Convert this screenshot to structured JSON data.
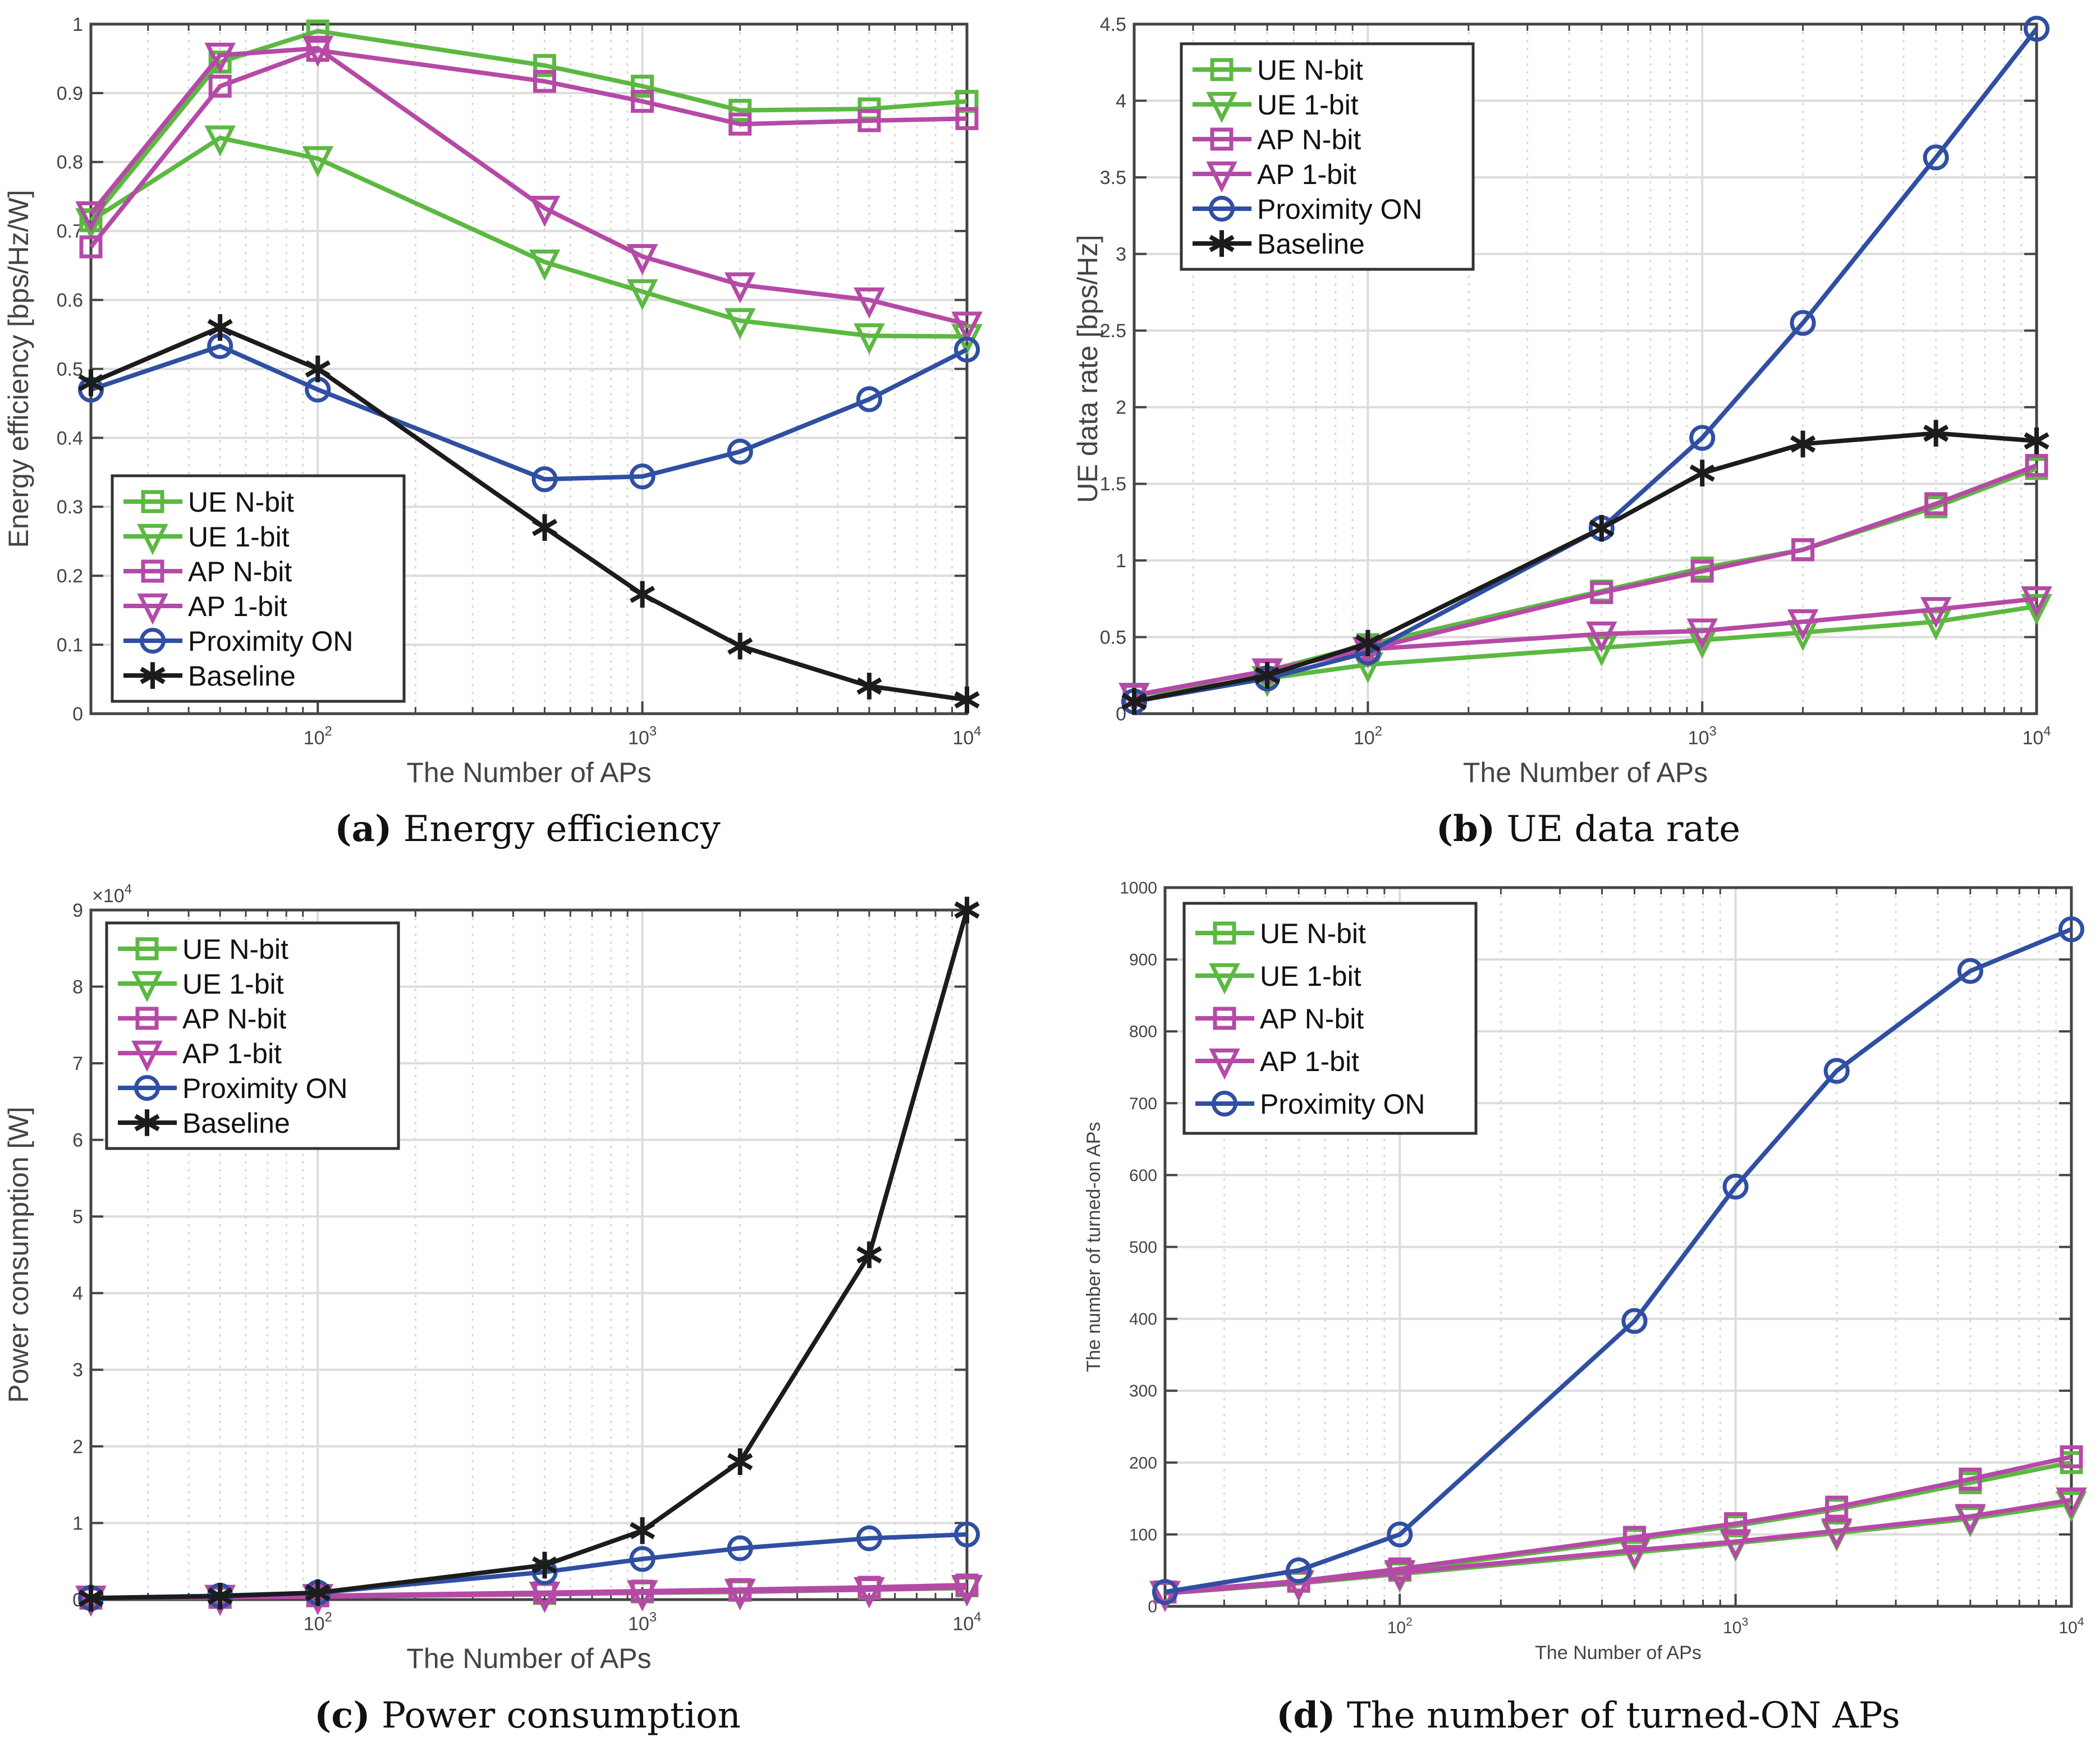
{
  "colors": {
    "green": "#5cb842",
    "magenta": "#b54aa6",
    "blue": "#2f4fa2",
    "black": "#1c1c1c"
  },
  "chart_data": [
    {
      "type": "line",
      "caption_letter": "(a)",
      "caption": "Energy efficiency",
      "xlabel": "The Number of APs",
      "ylabel": "Energy efficiency [bps/Hz/W]",
      "xscale": "log",
      "xlim": [
        20,
        10000
      ],
      "ylim": [
        0,
        1
      ],
      "yticks": [
        "0",
        "0.1",
        "0.2",
        "0.3",
        "0.4",
        "0.5",
        "0.6",
        "0.7",
        "0.8",
        "0.9",
        "1"
      ],
      "xticks": [
        {
          "base": "10",
          "exp": "2"
        },
        {
          "base": "10",
          "exp": "3"
        },
        {
          "base": "10",
          "exp": "4"
        }
      ],
      "grid": true,
      "legend": "bottom-left",
      "multiplier": "",
      "x": [
        20,
        50,
        100,
        500,
        1000,
        2000,
        5000,
        10000
      ],
      "series": [
        {
          "name": "UE N-bit",
          "color": "green",
          "marker": "square",
          "values": [
            0.715,
            0.945,
            0.99,
            0.94,
            0.91,
            0.875,
            0.877,
            0.888
          ]
        },
        {
          "name": "UE 1-bit",
          "color": "green",
          "marker": "triangle-down",
          "values": [
            0.715,
            0.835,
            0.805,
            0.655,
            0.612,
            0.57,
            0.548,
            0.547
          ]
        },
        {
          "name": "AP N-bit",
          "color": "magenta",
          "marker": "square",
          "values": [
            0.677,
            0.91,
            0.962,
            0.917,
            0.888,
            0.855,
            0.86,
            0.863
          ]
        },
        {
          "name": "AP 1-bit",
          "color": "magenta",
          "marker": "triangle-down",
          "values": [
            0.725,
            0.955,
            0.965,
            0.733,
            0.663,
            0.622,
            0.6,
            0.565
          ]
        },
        {
          "name": "Proximity ON",
          "color": "blue",
          "marker": "circle",
          "values": [
            0.47,
            0.533,
            0.47,
            0.34,
            0.344,
            0.38,
            0.456,
            0.528
          ]
        },
        {
          "name": "Baseline",
          "color": "black",
          "marker": "asterisk",
          "values": [
            0.48,
            0.56,
            0.5,
            0.27,
            0.173,
            0.098,
            0.04,
            0.02
          ]
        }
      ]
    },
    {
      "type": "line",
      "caption_letter": "(b)",
      "caption": "UE data rate",
      "xlabel": "The Number of APs",
      "ylabel": "UE data rate [bps/Hz]",
      "xscale": "log",
      "xlim": [
        20,
        10000
      ],
      "ylim": [
        0,
        4.5
      ],
      "yticks": [
        "0",
        "0.5",
        "1",
        "1.5",
        "2",
        "2.5",
        "3",
        "3.5",
        "4",
        "4.5"
      ],
      "xticks": [
        {
          "base": "10",
          "exp": "2"
        },
        {
          "base": "10",
          "exp": "3"
        },
        {
          "base": "10",
          "exp": "4"
        }
      ],
      "grid": true,
      "legend": "top-left",
      "multiplier": "",
      "x": [
        20,
        50,
        100,
        500,
        1000,
        2000,
        5000,
        10000
      ],
      "series": [
        {
          "name": "UE N-bit",
          "color": "green",
          "marker": "square",
          "values": [
            0.12,
            0.28,
            0.45,
            0.8,
            0.95,
            1.07,
            1.35,
            1.6
          ]
        },
        {
          "name": "UE 1-bit",
          "color": "green",
          "marker": "triangle-down",
          "values": [
            0.12,
            0.23,
            0.32,
            0.43,
            0.48,
            0.53,
            0.6,
            0.7
          ]
        },
        {
          "name": "AP N-bit",
          "color": "magenta",
          "marker": "square",
          "values": [
            0.12,
            0.28,
            0.42,
            0.79,
            0.93,
            1.07,
            1.37,
            1.62
          ]
        },
        {
          "name": "AP 1-bit",
          "color": "magenta",
          "marker": "triangle-down",
          "values": [
            0.12,
            0.28,
            0.42,
            0.52,
            0.54,
            0.6,
            0.68,
            0.75
          ]
        },
        {
          "name": "Proximity ON",
          "color": "blue",
          "marker": "circle",
          "values": [
            0.08,
            0.23,
            0.4,
            1.21,
            1.8,
            2.55,
            3.63,
            4.47
          ]
        },
        {
          "name": "Baseline",
          "color": "black",
          "marker": "asterisk",
          "values": [
            0.08,
            0.25,
            0.46,
            1.21,
            1.57,
            1.76,
            1.83,
            1.78
          ]
        }
      ]
    },
    {
      "type": "line",
      "caption_letter": "(c)",
      "caption": "Power consumption",
      "xlabel": "The Number of APs",
      "ylabel": "Power consumption [W]",
      "xscale": "log",
      "xlim": [
        20,
        10000
      ],
      "ylim": [
        0,
        9
      ],
      "yticks": [
        "0",
        "1",
        "2",
        "3",
        "4",
        "5",
        "6",
        "7",
        "8",
        "9"
      ],
      "xticks": [
        {
          "base": "10",
          "exp": "2"
        },
        {
          "base": "10",
          "exp": "3"
        },
        {
          "base": "10",
          "exp": "4"
        }
      ],
      "grid": true,
      "legend": "top-left",
      "multiplier": {
        "base": "×10",
        "exp": "4"
      },
      "x": [
        20,
        50,
        100,
        500,
        1000,
        2000,
        5000,
        10000
      ],
      "series": [
        {
          "name": "UE N-bit",
          "color": "green",
          "marker": "square",
          "values": [
            0.02,
            0.03,
            0.05,
            0.08,
            0.1,
            0.12,
            0.15,
            0.18
          ]
        },
        {
          "name": "UE 1-bit",
          "color": "green",
          "marker": "triangle-down",
          "values": [
            0.02,
            0.03,
            0.04,
            0.07,
            0.09,
            0.1,
            0.13,
            0.15
          ]
        },
        {
          "name": "AP N-bit",
          "color": "magenta",
          "marker": "square",
          "values": [
            0.02,
            0.03,
            0.05,
            0.09,
            0.11,
            0.13,
            0.16,
            0.19
          ]
        },
        {
          "name": "AP 1-bit",
          "color": "magenta",
          "marker": "triangle-down",
          "values": [
            0.02,
            0.03,
            0.04,
            0.07,
            0.09,
            0.11,
            0.13,
            0.16
          ]
        },
        {
          "name": "Proximity ON",
          "color": "blue",
          "marker": "circle",
          "values": [
            0.02,
            0.05,
            0.09,
            0.36,
            0.53,
            0.67,
            0.8,
            0.85
          ]
        },
        {
          "name": "Baseline",
          "color": "black",
          "marker": "asterisk",
          "values": [
            0.018,
            0.045,
            0.09,
            0.45,
            0.9,
            1.8,
            4.5,
            9.0
          ]
        }
      ]
    },
    {
      "type": "line",
      "caption_letter": "(d)",
      "caption": "The number of turned-ON APs",
      "xlabel": "The Number of APs",
      "ylabel": "The number of turned-on APs",
      "xscale": "log",
      "xlim": [
        20,
        10000
      ],
      "ylim": [
        0,
        1000
      ],
      "yticks": [
        "0",
        "100",
        "200",
        "300",
        "400",
        "500",
        "600",
        "700",
        "800",
        "900",
        "1000"
      ],
      "xticks": [
        {
          "base": "10",
          "exp": "2"
        },
        {
          "base": "10",
          "exp": "3"
        },
        {
          "base": "10",
          "exp": "4"
        }
      ],
      "grid": true,
      "legend": "top-left",
      "multiplier": "",
      "x": [
        20,
        50,
        100,
        500,
        1000,
        2000,
        5000,
        10000
      ],
      "series": [
        {
          "name": "UE N-bit",
          "color": "green",
          "marker": "square",
          "values": [
            20,
            35,
            50,
            93,
            112,
            135,
            172,
            200
          ]
        },
        {
          "name": "UE 1-bit",
          "color": "green",
          "marker": "triangle-down",
          "values": [
            18,
            32,
            45,
            75,
            88,
            102,
            122,
            143
          ]
        },
        {
          "name": "AP N-bit",
          "color": "magenta",
          "marker": "square",
          "values": [
            20,
            35,
            52,
            96,
            115,
            138,
            177,
            208
          ]
        },
        {
          "name": "AP 1-bit",
          "color": "magenta",
          "marker": "triangle-down",
          "values": [
            18,
            33,
            47,
            78,
            90,
            105,
            125,
            148
          ]
        },
        {
          "name": "Proximity ON",
          "color": "blue",
          "marker": "circle",
          "values": [
            20,
            50,
            100,
            397,
            584,
            745,
            884,
            942
          ]
        }
      ]
    }
  ]
}
